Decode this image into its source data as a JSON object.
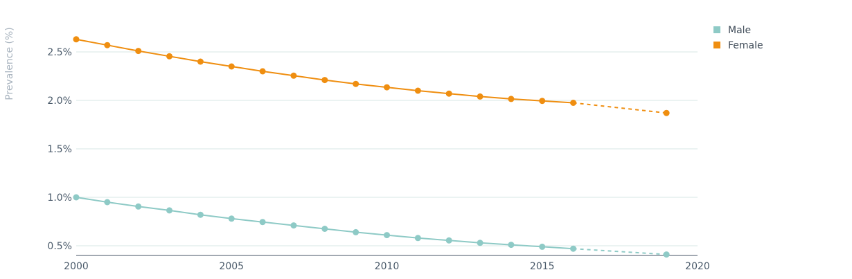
{
  "chart_data": {
    "type": "line",
    "ylabel": "Prevalence (%)",
    "xlabel": "",
    "xlim": [
      2000,
      2020
    ],
    "ylim": [
      0.4,
      2.8
    ],
    "xticks": [
      2000,
      2005,
      2010,
      2015,
      2020
    ],
    "xtick_labels": [
      "2000",
      "2005",
      "2010",
      "2015",
      "2020"
    ],
    "yticks": [
      0.5,
      1.0,
      1.5,
      2.0,
      2.5
    ],
    "ytick_labels": [
      "0.5%",
      "1.0%",
      "1.5%",
      "2.0%",
      "2.5%"
    ],
    "grid": "horizontal",
    "legend_position": "top-right",
    "series": [
      {
        "name": "Male",
        "color": "#8ecac6",
        "x": [
          2000,
          2001,
          2002,
          2003,
          2004,
          2005,
          2006,
          2007,
          2008,
          2009,
          2010,
          2011,
          2012,
          2013,
          2014,
          2015,
          2016
        ],
        "values": [
          1.0,
          0.95,
          0.905,
          0.865,
          0.82,
          0.78,
          0.745,
          0.71,
          0.675,
          0.64,
          0.61,
          0.58,
          0.555,
          0.53,
          0.51,
          0.49,
          0.47
        ],
        "projection": {
          "x": [
            2016,
            2019
          ],
          "values": [
            0.47,
            0.41
          ]
        }
      },
      {
        "name": "Female",
        "color": "#ef8e10",
        "x": [
          2000,
          2001,
          2002,
          2003,
          2004,
          2005,
          2006,
          2007,
          2008,
          2009,
          2010,
          2011,
          2012,
          2013,
          2014,
          2015,
          2016
        ],
        "values": [
          2.63,
          2.57,
          2.51,
          2.455,
          2.4,
          2.35,
          2.3,
          2.255,
          2.21,
          2.17,
          2.135,
          2.1,
          2.07,
          2.04,
          2.015,
          1.995,
          1.975
        ],
        "projection": {
          "x": [
            2016,
            2019
          ],
          "values": [
            1.975,
            1.87
          ]
        }
      }
    ]
  }
}
